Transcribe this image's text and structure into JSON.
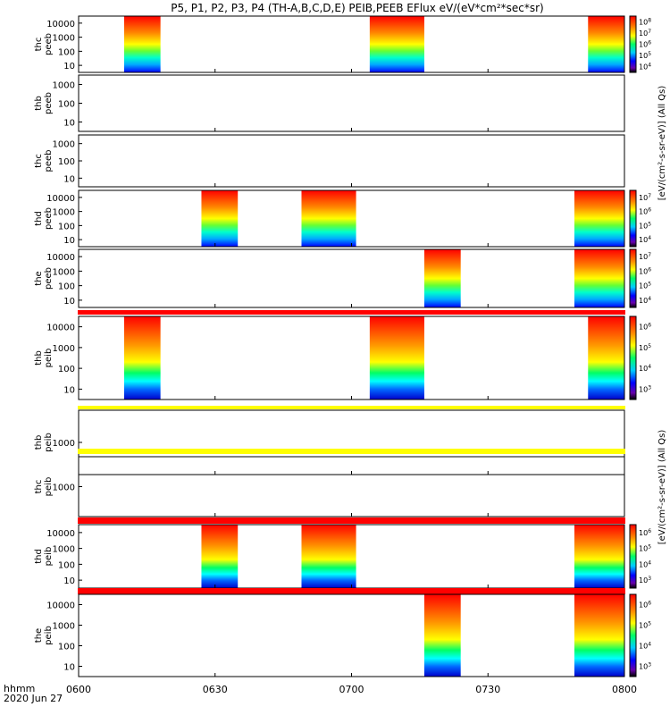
{
  "title": "P5, P1, P2, P3, P4 (TH-A,B,C,D,E) PEIB,PEEB EFlux eV/(eV*cm²*sec*sr)",
  "x_axis": {
    "ticks": [
      "0600",
      "0630",
      "0700",
      "0730",
      "0800"
    ],
    "minutes": [
      0,
      30,
      60,
      90,
      120
    ],
    "corner_label": "hhmm",
    "date_label": "2020 Jun 27"
  },
  "colorbar_labels": {
    "electron": "[eV/(cm²-s-sr-eV)] (All Qs)",
    "ion": "[eV/(cm²-s-sr-eV)] (All Qs)"
  },
  "colors": {
    "flag_red": "#ff0000",
    "flag_yellow": "#ffff00",
    "fill_high": "#ff0000",
    "fill_low": "#0000ff"
  },
  "chart_data": [
    {
      "type": "heatmap",
      "probe": "thc",
      "species": "peeb",
      "label": [
        "thc",
        "peeb"
      ],
      "yscale": "log",
      "y_ticks": [
        "10000",
        "1000",
        "100",
        "10"
      ],
      "x_unit": "minutes after 0600",
      "y_unit": "eV",
      "cbar_ticks": [
        "10^8",
        "10^7",
        "10^6",
        "10^5",
        "10^4"
      ],
      "data_intervals": [
        [
          10,
          18
        ],
        [
          64,
          76
        ],
        [
          112,
          120
        ]
      ]
    },
    {
      "type": "heatmap",
      "probe": "thb",
      "species": "peeb",
      "label": [
        "thb",
        "peeb"
      ],
      "yscale": "log",
      "y_ticks": [
        "1000",
        "100",
        "10"
      ],
      "data_intervals": []
    },
    {
      "type": "heatmap",
      "probe": "thc",
      "species": "peeb",
      "label": [
        "thc",
        "peeb"
      ],
      "yscale": "log",
      "y_ticks": [
        "1000",
        "100",
        "10"
      ],
      "data_intervals": []
    },
    {
      "type": "heatmap",
      "probe": "thd",
      "species": "peeb",
      "label": [
        "thd",
        "peeb"
      ],
      "yscale": "log",
      "y_ticks": [
        "10000",
        "1000",
        "100",
        "10"
      ],
      "cbar_ticks": [
        "10^7",
        "10^6",
        "10^5",
        "10^4"
      ],
      "data_intervals": [
        [
          27,
          35
        ],
        [
          49,
          61
        ],
        [
          109,
          120
        ]
      ]
    },
    {
      "type": "heatmap",
      "probe": "the",
      "species": "peeb",
      "label": [
        "the",
        "peeb"
      ],
      "yscale": "log",
      "y_ticks": [
        "10000",
        "1000",
        "100",
        "10"
      ],
      "cbar_ticks": [
        "10^7",
        "10^6",
        "10^5",
        "10^4"
      ],
      "data_intervals": [
        [
          76,
          84
        ],
        [
          109,
          120
        ]
      ]
    },
    {
      "type": "heatmap",
      "probe": "thb",
      "species": "peib",
      "label": [
        "thb",
        "peib"
      ],
      "yscale": "log",
      "y_ticks": [
        "10000",
        "1000",
        "100",
        "10"
      ],
      "cbar_ticks": [
        "10^6",
        "10^5",
        "10^4",
        "10^3"
      ],
      "flag": "red",
      "data_intervals": [
        [
          10,
          18
        ],
        [
          64,
          76
        ],
        [
          112,
          120
        ]
      ]
    },
    {
      "type": "heatmap",
      "probe": "thb",
      "species": "peib",
      "label": [
        "thb",
        "peib"
      ],
      "yscale": "log",
      "y_ticks": [
        "1000"
      ],
      "flag": "yellow",
      "data_intervals": []
    },
    {
      "type": "heatmap",
      "probe": "thc",
      "species": "peib",
      "label": [
        "thc",
        "peib"
      ],
      "yscale": "log",
      "y_ticks": [
        "1000"
      ],
      "flag": "yellow",
      "data_intervals": []
    },
    {
      "type": "heatmap",
      "probe": "thd",
      "species": "peib",
      "label": [
        "thd",
        "peib"
      ],
      "yscale": "log",
      "y_ticks": [
        "10000",
        "1000",
        "100",
        "10"
      ],
      "cbar_ticks": [
        "10^6",
        "10^5",
        "10^4",
        "10^3"
      ],
      "flag": "red",
      "data_intervals": [
        [
          27,
          35
        ],
        [
          49,
          61
        ],
        [
          109,
          120
        ]
      ]
    },
    {
      "type": "heatmap",
      "probe": "the",
      "species": "peib",
      "label": [
        "the",
        "peib"
      ],
      "yscale": "log",
      "y_ticks": [
        "10000",
        "1000",
        "100",
        "10"
      ],
      "cbar_ticks": [
        "10^6",
        "10^5",
        "10^4",
        "10^3"
      ],
      "flag": "red",
      "data_intervals": [
        [
          76,
          84
        ],
        [
          109,
          120
        ]
      ]
    }
  ]
}
